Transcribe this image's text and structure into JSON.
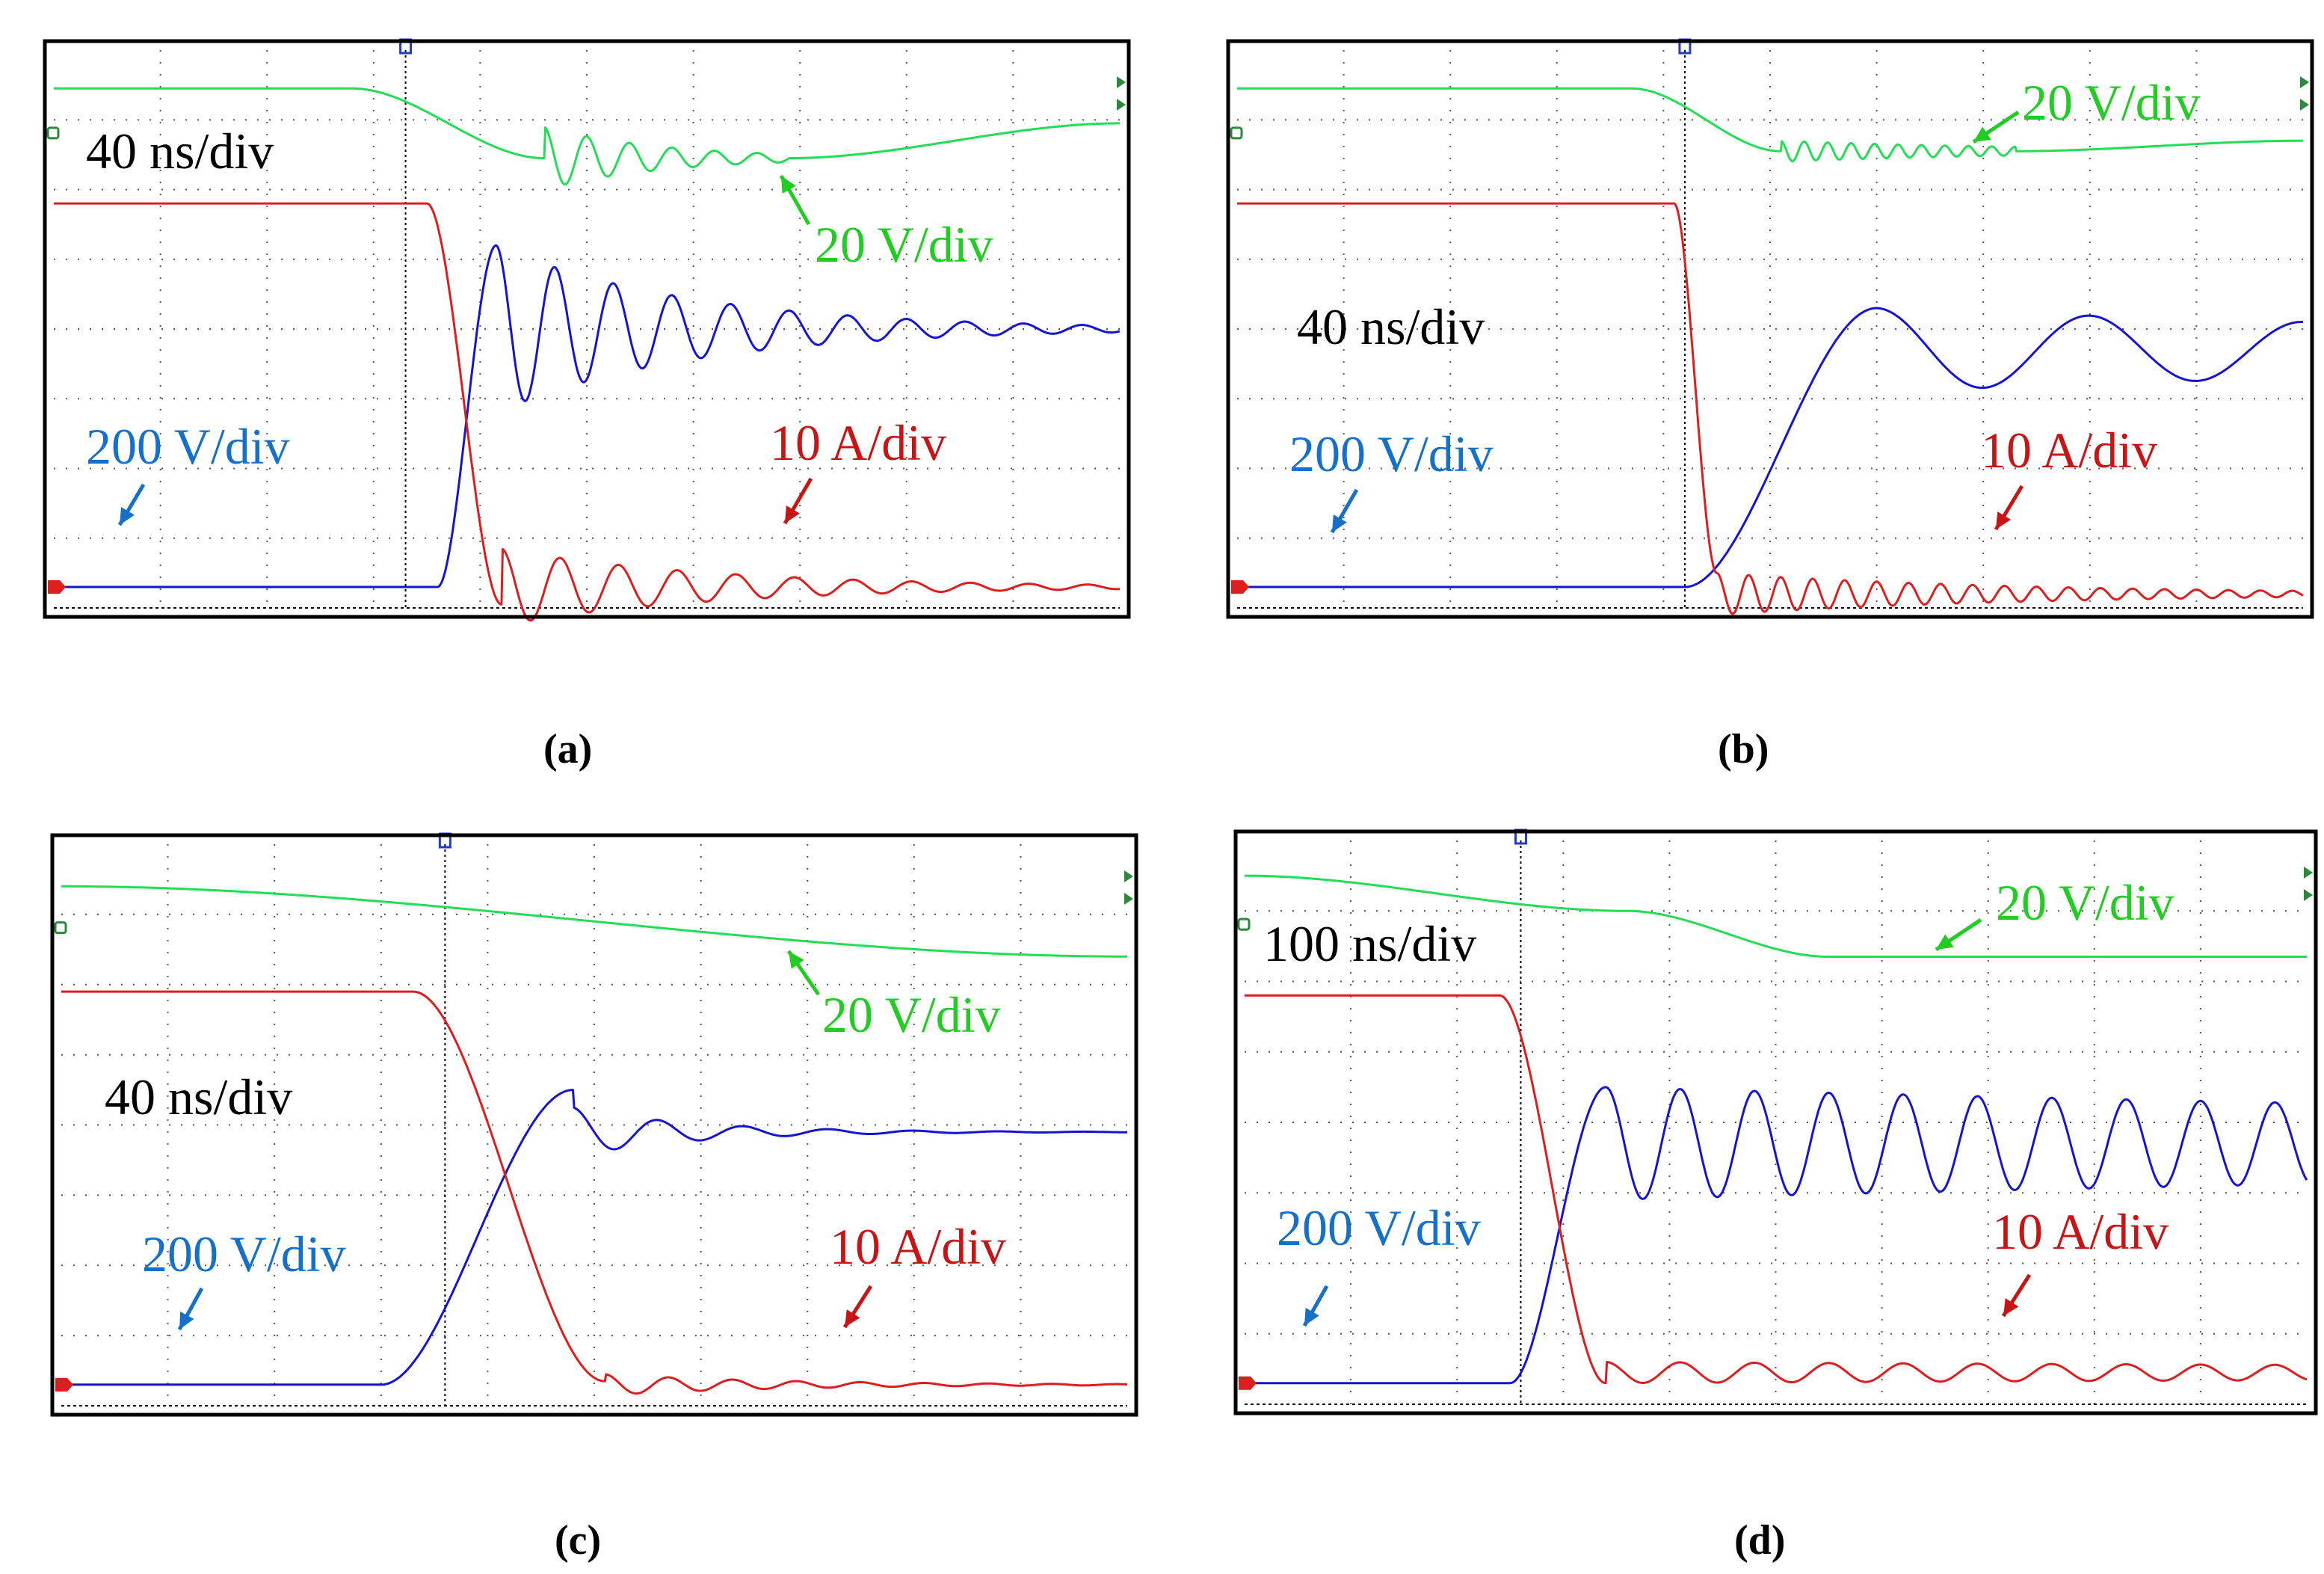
{
  "figure_title": "",
  "colors": {
    "green": "#22dd55",
    "blue": "#1414d2",
    "red": "#dc1e1e",
    "blue_label": "#1470c8",
    "red_label": "#c81414",
    "green_label": "#22cc22",
    "grid": "#555555",
    "frame": "#000000"
  },
  "panels": [
    {
      "caption": "(a)",
      "time_label": "40 ns/div",
      "ch_green_label": "20 V/div",
      "ch_blue_label": "200 V/div",
      "ch_red_label": "10 A/div"
    },
    {
      "caption": "(b)",
      "time_label": "40 ns/div",
      "ch_green_label": "20 V/div",
      "ch_blue_label": "200 V/div",
      "ch_red_label": "10 A/div"
    },
    {
      "caption": "(c)",
      "time_label": "40 ns/div",
      "ch_green_label": "20 V/div",
      "ch_blue_label": "200 V/div",
      "ch_red_label": "10 A/div"
    },
    {
      "caption": "(d)",
      "time_label": "100 ns/div",
      "ch_green_label": "20 V/div",
      "ch_blue_label": "200 V/div",
      "ch_red_label": "10 A/div"
    }
  ],
  "chart_data": [
    {
      "type": "line",
      "title": "(a)",
      "x_unit": "div",
      "y_unit": "div",
      "xlim": [
        0,
        10
      ],
      "ylim": [
        0,
        8
      ],
      "time_per_div": "40 ns",
      "series": [
        {
          "name": "20 V/div",
          "color_key": "green",
          "segments": [
            {
              "kind": "const",
              "x0": 0,
              "x1": 2.8,
              "level": 7.45
            },
            {
              "kind": "ramp",
              "x0": 2.8,
              "x1": 4.6,
              "from": 7.45,
              "to": 6.45
            },
            {
              "kind": "ring",
              "x0": 4.6,
              "x1": 6.9,
              "level": 6.45,
              "amp": 0.45,
              "period": 0.4,
              "decay": 0.9
            },
            {
              "kind": "ramp",
              "x0": 6.9,
              "x1": 10,
              "from": 6.45,
              "to": 6.95
            }
          ]
        },
        {
          "name": "200 V/div",
          "color_key": "blue",
          "segments": [
            {
              "kind": "const",
              "x0": 0,
              "x1": 3.6,
              "level": 0.3
            },
            {
              "kind": "ramp",
              "x0": 3.6,
              "x1": 4.15,
              "from": 0.3,
              "to": 5.2
            },
            {
              "kind": "ring",
              "x0": 4.15,
              "x1": 10,
              "level": 4.0,
              "amp": 1.2,
              "period": 0.55,
              "decay": 0.55
            }
          ]
        },
        {
          "name": "10 A/div",
          "color_key": "red",
          "segments": [
            {
              "kind": "const",
              "x0": 0,
              "x1": 3.5,
              "level": 5.8
            },
            {
              "kind": "ramp",
              "x0": 3.5,
              "x1": 4.2,
              "from": 5.8,
              "to": 0.05
            },
            {
              "kind": "ring",
              "x0": 4.2,
              "x1": 10,
              "level": 0.3,
              "amp": 0.55,
              "period": 0.55,
              "decay": 0.5
            }
          ]
        }
      ]
    },
    {
      "type": "line",
      "title": "(b)",
      "x_unit": "div",
      "y_unit": "div",
      "xlim": [
        0,
        10
      ],
      "ylim": [
        0,
        8
      ],
      "time_per_div": "40 ns",
      "series": [
        {
          "name": "20 V/div",
          "color_key": "green",
          "segments": [
            {
              "kind": "const",
              "x0": 0,
              "x1": 3.7,
              "level": 7.45
            },
            {
              "kind": "ramp",
              "x0": 3.7,
              "x1": 5.1,
              "from": 7.45,
              "to": 6.55
            },
            {
              "kind": "ring",
              "x0": 5.1,
              "x1": 7.3,
              "level": 6.55,
              "amp": 0.15,
              "period": 0.22,
              "decay": 0.4
            },
            {
              "kind": "ramp",
              "x0": 7.3,
              "x1": 10,
              "from": 6.55,
              "to": 6.7
            }
          ]
        },
        {
          "name": "200 V/div",
          "color_key": "blue",
          "segments": [
            {
              "kind": "const",
              "x0": 0,
              "x1": 4.2,
              "level": 0.3
            },
            {
              "kind": "ramp",
              "x0": 4.2,
              "x1": 6.0,
              "from": 0.3,
              "to": 4.3
            },
            {
              "kind": "ring",
              "x0": 6.0,
              "x1": 10,
              "level": 3.7,
              "amp": 0.6,
              "period": 2.0,
              "decay": 0.1
            }
          ]
        },
        {
          "name": "10 A/div",
          "color_key": "red",
          "segments": [
            {
              "kind": "const",
              "x0": 0,
              "x1": 4.1,
              "level": 5.8
            },
            {
              "kind": "ramp",
              "x0": 4.1,
              "x1": 4.5,
              "from": 5.8,
              "to": 0.5
            },
            {
              "kind": "ring",
              "x0": 4.5,
              "x1": 10,
              "level": 0.2,
              "amp": 0.3,
              "period": 0.3,
              "decay": 0.35
            }
          ]
        }
      ]
    },
    {
      "type": "line",
      "title": "(c)",
      "x_unit": "div",
      "y_unit": "div",
      "xlim": [
        0,
        10
      ],
      "ylim": [
        0,
        8
      ],
      "time_per_div": "40 ns",
      "series": [
        {
          "name": "20 V/div",
          "color_key": "green",
          "segments": [
            {
              "kind": "ramp",
              "x0": 0,
              "x1": 10,
              "from": 7.4,
              "to": 6.4
            }
          ]
        },
        {
          "name": "200 V/div",
          "color_key": "blue",
          "segments": [
            {
              "kind": "const",
              "x0": 0,
              "x1": 3.0,
              "level": 0.3
            },
            {
              "kind": "ramp",
              "x0": 3.0,
              "x1": 4.8,
              "from": 0.3,
              "to": 4.5
            },
            {
              "kind": "ring",
              "x0": 4.8,
              "x1": 10,
              "level": 3.9,
              "amp": 0.35,
              "period": 0.8,
              "decay": 0.9
            }
          ]
        },
        {
          "name": "10 A/div",
          "color_key": "red",
          "segments": [
            {
              "kind": "const",
              "x0": 0,
              "x1": 3.3,
              "level": 5.9
            },
            {
              "kind": "ramp",
              "x0": 3.3,
              "x1": 5.1,
              "from": 5.9,
              "to": 0.35
            },
            {
              "kind": "ring",
              "x0": 5.1,
              "x1": 10,
              "level": 0.3,
              "amp": 0.15,
              "period": 0.6,
              "decay": 0.6
            }
          ]
        }
      ]
    },
    {
      "type": "line",
      "title": "(d)",
      "x_unit": "div",
      "y_unit": "div",
      "xlim": [
        0,
        10
      ],
      "ylim": [
        0,
        8
      ],
      "time_per_div": "100 ns",
      "series": [
        {
          "name": "20 V/div",
          "color_key": "green",
          "segments": [
            {
              "kind": "ramp",
              "x0": 0,
              "x1": 3.6,
              "from": 7.5,
              "to": 7.0
            },
            {
              "kind": "ramp",
              "x0": 3.6,
              "x1": 5.5,
              "from": 7.0,
              "to": 6.35
            },
            {
              "kind": "const",
              "x0": 5.5,
              "x1": 10,
              "level": 6.35
            }
          ]
        },
        {
          "name": "200 V/div",
          "color_key": "blue",
          "segments": [
            {
              "kind": "const",
              "x0": 0,
              "x1": 2.5,
              "level": 0.3
            },
            {
              "kind": "ramp",
              "x0": 2.5,
              "x1": 3.4,
              "from": 0.3,
              "to": 4.5
            },
            {
              "kind": "ring",
              "x0": 3.4,
              "x1": 10,
              "level": 3.7,
              "amp": 0.8,
              "period": 0.7,
              "decay": 0.05
            }
          ]
        },
        {
          "name": "10 A/div",
          "color_key": "red",
          "segments": [
            {
              "kind": "const",
              "x0": 0,
              "x1": 2.4,
              "level": 5.8
            },
            {
              "kind": "ramp",
              "x0": 2.4,
              "x1": 3.4,
              "from": 5.8,
              "to": 0.3
            },
            {
              "kind": "ring",
              "x0": 3.4,
              "x1": 10,
              "level": 0.45,
              "amp": 0.15,
              "period": 0.7,
              "decay": 0.05
            }
          ]
        }
      ]
    }
  ]
}
